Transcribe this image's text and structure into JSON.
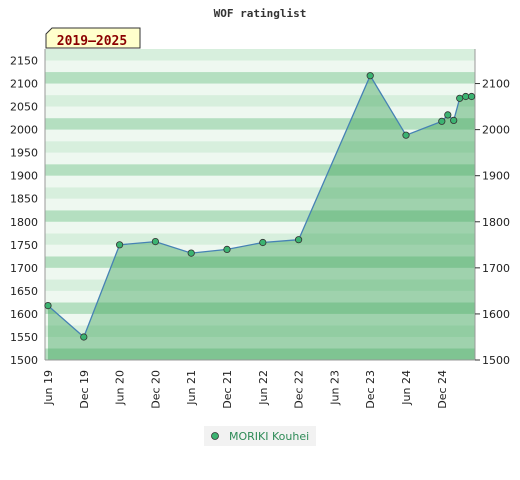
{
  "chart_data": {
    "type": "area",
    "title": "WOF ratinglist",
    "badge": "2019–2025",
    "y_ticks": [
      1500,
      1550,
      1600,
      1650,
      1700,
      1750,
      1800,
      1850,
      1900,
      1950,
      2000,
      2050,
      2100,
      2150
    ],
    "y_ticks_right": [
      1500,
      1600,
      1700,
      1800,
      1900,
      2000,
      2100
    ],
    "ylim": [
      1500,
      2175
    ],
    "x_ticks": [
      "Jun 19",
      "Dec 19",
      "Jun 20",
      "Dec 20",
      "Jun 21",
      "Dec 21",
      "Jun 22",
      "Dec 22",
      "Jun 23",
      "Dec 23",
      "Jun 24",
      "Dec 24"
    ],
    "grid": true,
    "legend_position": "bottom",
    "series": [
      {
        "name": "MORIKI Kouhei",
        "color": "#4682b4",
        "marker_color": "#3cb371",
        "points": [
          {
            "x": "2019-06",
            "y": 1618
          },
          {
            "x": "2019-12",
            "y": 1550
          },
          {
            "x": "2020-06",
            "y": 1750
          },
          {
            "x": "2020-12",
            "y": 1757
          },
          {
            "x": "2021-06",
            "y": 1732
          },
          {
            "x": "2021-12",
            "y": 1740
          },
          {
            "x": "2022-06",
            "y": 1755
          },
          {
            "x": "2022-12",
            "y": 1761
          },
          {
            "x": "2023-12",
            "y": 2117
          },
          {
            "x": "2024-06",
            "y": 1988
          },
          {
            "x": "2024-12",
            "y": 2018
          },
          {
            "x": "2025-01",
            "y": 2032
          },
          {
            "x": "2025-02",
            "y": 2020
          },
          {
            "x": "2025-03",
            "y": 2068
          },
          {
            "x": "2025-04",
            "y": 2072
          },
          {
            "x": "2025-05",
            "y": 2072
          }
        ]
      }
    ]
  }
}
